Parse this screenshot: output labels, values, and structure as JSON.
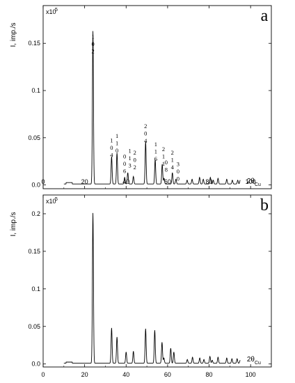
{
  "chart_data": [
    {
      "type": "line",
      "panel_label": "a",
      "ylabel": "I, imp./s",
      "y_scale": "x10",
      "y_scale_exp": "5",
      "xlabel": "2θ",
      "xlabel_sub": "Cu",
      "xlim": [
        0,
        110
      ],
      "ylim": [
        -0.004,
        0.19
      ],
      "xticks": [
        0,
        20,
        40,
        60,
        80,
        100
      ],
      "yticks": [
        0.0,
        0.05,
        0.1,
        0.15
      ],
      "ytick_labels": [
        "0.0",
        "0.05",
        "0.1",
        "0.15"
      ],
      "peaks": [
        {
          "x": 24.0,
          "y": 0.162
        },
        {
          "x": 33.0,
          "y": 0.029
        },
        {
          "x": 35.6,
          "y": 0.033
        },
        {
          "x": 39.3,
          "y": 0.007
        },
        {
          "x": 40.8,
          "y": 0.012
        },
        {
          "x": 43.5,
          "y": 0.008
        },
        {
          "x": 49.4,
          "y": 0.045
        },
        {
          "x": 54.0,
          "y": 0.026
        },
        {
          "x": 57.4,
          "y": 0.021
        },
        {
          "x": 58.3,
          "y": 0.006
        },
        {
          "x": 62.3,
          "y": 0.012
        },
        {
          "x": 64.0,
          "y": 0.005
        },
        {
          "x": 69.4,
          "y": 0.004
        },
        {
          "x": 71.8,
          "y": 0.005
        },
        {
          "x": 75.4,
          "y": 0.007
        },
        {
          "x": 77.2,
          "y": 0.005
        },
        {
          "x": 80.6,
          "y": 0.007
        },
        {
          "x": 82.0,
          "y": 0.004
        },
        {
          "x": 84.3,
          "y": 0.006
        },
        {
          "x": 88.5,
          "y": 0.005
        },
        {
          "x": 91.2,
          "y": 0.004
        },
        {
          "x": 93.8,
          "y": 0.004
        },
        {
          "x": 95.0,
          "y": 0.004
        }
      ],
      "x_range": [
        10,
        95
      ],
      "annotations": [
        {
          "x": 24.0,
          "y": 0.155,
          "label": [
            "1",
            "0",
            "2"
          ]
        },
        {
          "x": 33.0,
          "y": 0.045,
          "label": [
            "1",
            "0",
            "4"
          ]
        },
        {
          "x": 35.6,
          "y": 0.05,
          "label": [
            "1",
            "1",
            "0"
          ]
        },
        {
          "x": 39.3,
          "y": 0.028,
          "label": [
            "0",
            "0",
            "6"
          ]
        },
        {
          "x": 41.8,
          "y": 0.034,
          "label": [
            "1",
            "1",
            "3"
          ]
        },
        {
          "x": 44.2,
          "y": 0.032,
          "label": [
            "2",
            "0",
            "2"
          ]
        },
        {
          "x": 49.4,
          "y": 0.06,
          "label": [
            "2",
            "0",
            "4"
          ]
        },
        {
          "x": 54.3,
          "y": 0.041,
          "label": [
            "1",
            "1",
            "6"
          ]
        },
        {
          "x": 58.0,
          "y": 0.036,
          "label": [
            "2",
            "1",
            "1"
          ]
        },
        {
          "x": 59.3,
          "y": 0.022,
          "label": [
            "0",
            "8"
          ]
        },
        {
          "x": 62.3,
          "y": 0.032,
          "label": [
            "2",
            "1",
            "4"
          ]
        },
        {
          "x": 65.0,
          "y": 0.02,
          "label": [
            "3",
            "0",
            "0"
          ]
        }
      ]
    },
    {
      "type": "line",
      "panel_label": "b",
      "ylabel": "I, imp./s",
      "y_scale": "x10",
      "y_scale_exp": "5",
      "xlabel": "2θ",
      "xlabel_sub": "Cu",
      "xlim": [
        0,
        110
      ],
      "ylim": [
        -0.004,
        0.225
      ],
      "xticks": [
        0,
        20,
        40,
        60,
        80,
        100
      ],
      "xtick_labels": [
        "0",
        "20",
        "40",
        "60",
        "80",
        "100"
      ],
      "yticks": [
        0.0,
        0.05,
        0.1,
        0.15,
        0.2
      ],
      "ytick_labels": [
        "0.0",
        "0.05",
        "0.1",
        "0.15",
        "0.2"
      ],
      "peaks": [
        {
          "x": 24.0,
          "y": 0.2
        },
        {
          "x": 33.0,
          "y": 0.047
        },
        {
          "x": 35.6,
          "y": 0.035
        },
        {
          "x": 40.0,
          "y": 0.015
        },
        {
          "x": 43.5,
          "y": 0.016
        },
        {
          "x": 49.4,
          "y": 0.046
        },
        {
          "x": 53.8,
          "y": 0.044
        },
        {
          "x": 57.3,
          "y": 0.028
        },
        {
          "x": 58.2,
          "y": 0.007
        },
        {
          "x": 61.5,
          "y": 0.02
        },
        {
          "x": 63.0,
          "y": 0.015
        },
        {
          "x": 69.5,
          "y": 0.005
        },
        {
          "x": 72.0,
          "y": 0.008
        },
        {
          "x": 75.5,
          "y": 0.007
        },
        {
          "x": 77.5,
          "y": 0.005
        },
        {
          "x": 80.4,
          "y": 0.009
        },
        {
          "x": 81.5,
          "y": 0.004
        },
        {
          "x": 84.3,
          "y": 0.008
        },
        {
          "x": 88.5,
          "y": 0.007
        },
        {
          "x": 91.0,
          "y": 0.006
        },
        {
          "x": 93.5,
          "y": 0.006
        },
        {
          "x": 95.0,
          "y": 0.004
        }
      ],
      "x_range": [
        10,
        95
      ],
      "annotations": []
    }
  ]
}
